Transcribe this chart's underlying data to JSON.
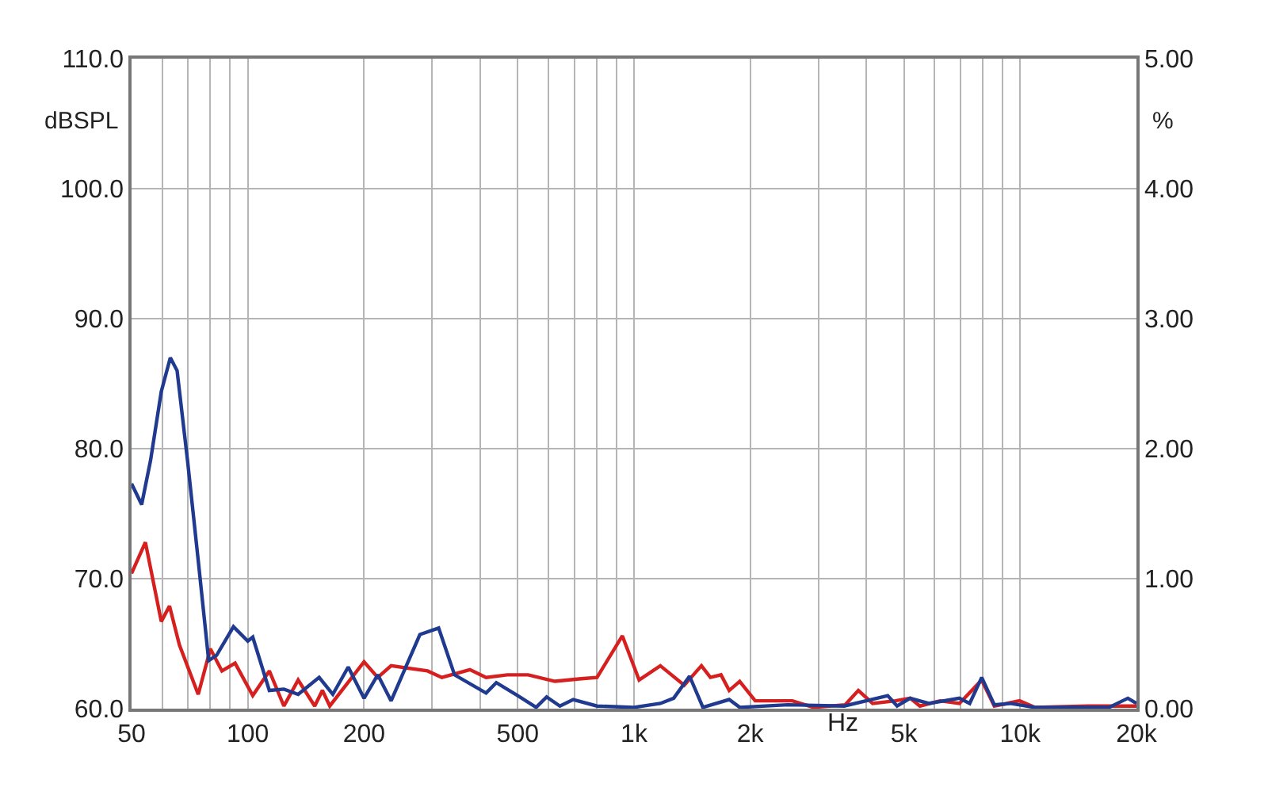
{
  "chart_data": {
    "type": "line",
    "xlabel": "Hz",
    "ylabel": "dBSPL",
    "y2label": "%",
    "log": "x",
    "grid": true,
    "marker": "none",
    "line_style": "solid",
    "xlim": [
      50,
      20000
    ],
    "xticks": [
      50,
      {
        "value": 60,
        "label": null
      },
      {
        "value": 70,
        "label": null
      },
      {
        "value": 80,
        "label": null
      },
      {
        "value": 90,
        "label": null
      },
      100,
      200,
      {
        "value": 300,
        "label": null
      },
      {
        "value": 400,
        "label": null
      },
      500,
      {
        "value": 600,
        "label": null
      },
      {
        "value": 700,
        "label": null
      },
      {
        "value": 800,
        "label": null
      },
      {
        "value": 900,
        "label": null
      },
      {
        "value": 1000,
        "label": "1k"
      },
      {
        "value": 2000,
        "label": "2k"
      },
      {
        "value": 3000,
        "label": null
      },
      {
        "value": 4000,
        "label": null
      },
      {
        "value": 5000,
        "label": "5k"
      },
      {
        "value": 6000,
        "label": null
      },
      {
        "value": 7000,
        "label": null
      },
      {
        "value": 8000,
        "label": null
      },
      {
        "value": 9000,
        "label": null
      },
      {
        "value": 10000,
        "label": "10k"
      },
      {
        "value": 20000,
        "label": "20k"
      }
    ],
    "ylim": [
      60,
      110
    ],
    "yticks": [
      {
        "value": 60,
        "label": "60.0"
      },
      {
        "value": 70,
        "label": "70.0"
      },
      {
        "value": 80,
        "label": "80.0"
      },
      {
        "value": 90,
        "label": "90.0"
      },
      {
        "value": 100,
        "label": "100.0"
      },
      {
        "value": 110,
        "label": "110.0"
      }
    ],
    "y2lim": [
      0,
      5
    ],
    "y2ticks": [
      {
        "value": 0,
        "label": "0.00"
      },
      {
        "value": 1,
        "label": "1.00"
      },
      {
        "value": 2,
        "label": "2.00"
      },
      {
        "value": 3,
        "label": "3.00"
      },
      {
        "value": 4,
        "label": "4.00"
      },
      {
        "value": 5,
        "label": "5.00"
      }
    ],
    "series": [
      {
        "color": "#d62020",
        "x": [
          50,
          54.3,
          59.7,
          62.7,
          66.5,
          74.4,
          80,
          85.7,
          92.7,
          103,
          113.7,
          124,
          135,
          149,
          156,
          163,
          200,
          217,
          235,
          292,
          318,
          376,
          414,
          470,
          532,
          624,
          730,
          802,
          933,
          1031,
          1170,
          1349,
          1495,
          1577,
          1680,
          1764,
          1878,
          2060,
          2570,
          2915,
          3524,
          3810,
          4150,
          4750,
          5190,
          5500,
          6200,
          6960,
          7950,
          8570,
          9960,
          10900,
          15000,
          20000
        ],
        "values": [
          70.4,
          72.8,
          66.7,
          67.9,
          64.9,
          61.1,
          64.6,
          62.9,
          63.5,
          61.0,
          62.9,
          60.2,
          62.2,
          60.2,
          61.4,
          60.2,
          63.6,
          62.4,
          63.3,
          62.9,
          62.4,
          63.0,
          62.4,
          62.6,
          62.6,
          62.1,
          62.3,
          62.4,
          65.6,
          62.2,
          63.3,
          61.8,
          63.3,
          62.4,
          62.6,
          61.4,
          62.1,
          60.6,
          60.6,
          60.1,
          60.3,
          61.4,
          60.4,
          60.6,
          60.8,
          60.2,
          60.6,
          60.4,
          62.2,
          60.2,
          60.6,
          60.1,
          60.2,
          60.2
        ]
      },
      {
        "color": "#1f3a8f",
        "x": [
          50,
          53.1,
          56,
          59.7,
          63,
          65.6,
          69.8,
          74.4,
          79.2,
          83,
          91.8,
          100,
          103,
          113.7,
          124,
          135,
          153,
          166,
          182,
          200,
          217,
          235,
          279,
          312,
          343,
          414,
          440,
          500,
          558,
          594,
          643,
          696,
          802,
          1000,
          1170,
          1267,
          1393,
          1508,
          1764,
          1878,
          2500,
          3500,
          4540,
          4800,
          5190,
          5800,
          6960,
          7400,
          7950,
          8570,
          9430,
          10900,
          17000,
          19000,
          20000
        ],
        "values": [
          77.3,
          75.7,
          79.1,
          84.4,
          87.0,
          86.0,
          79.1,
          71.4,
          63.7,
          64.1,
          66.3,
          65.2,
          65.5,
          61.4,
          61.5,
          61.1,
          62.4,
          61.1,
          63.2,
          60.8,
          62.6,
          60.6,
          65.7,
          66.2,
          62.6,
          61.2,
          62.0,
          61.0,
          60.1,
          60.9,
          60.2,
          60.7,
          60.2,
          60.1,
          60.4,
          60.8,
          62.5,
          60.1,
          60.7,
          60.1,
          60.3,
          60.2,
          61.0,
          60.2,
          60.8,
          60.4,
          60.8,
          60.4,
          62.4,
          60.3,
          60.4,
          60.1,
          60.1,
          60.8,
          60.4
        ]
      }
    ]
  }
}
